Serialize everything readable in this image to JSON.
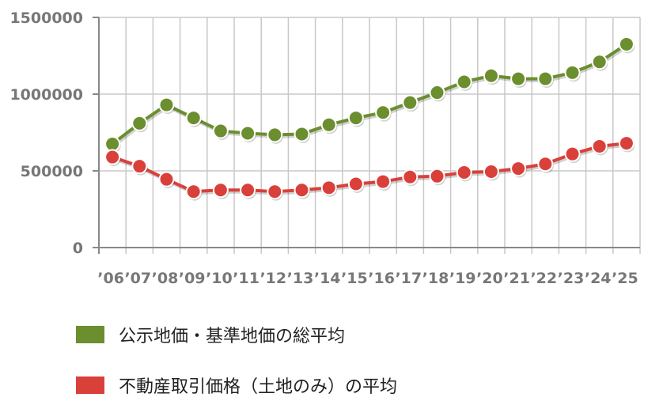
{
  "chart_data": {
    "type": "line",
    "title": "",
    "xlabel": "",
    "ylabel": "",
    "ylim": [
      0,
      1500000
    ],
    "yticks": [
      "1500000",
      "1000000",
      "500000",
      "0"
    ],
    "categories": [
      "'06",
      "'07",
      "'08",
      "'09",
      "'10",
      "'11",
      "'12",
      "'13",
      "'14",
      "'15",
      "'16",
      "'17",
      "'18",
      "'19",
      "'20",
      "'21",
      "'22",
      "'23",
      "'24",
      "'25"
    ],
    "x_tick_labels": [
      "’06",
      "’07",
      "’08",
      "’09",
      "’10",
      "’11",
      "’12",
      "’13",
      "’14",
      "’15",
      "’16",
      "’17",
      "’18",
      "’19",
      "’20",
      "’21",
      "’22",
      "’23",
      "’24",
      "’25"
    ],
    "grid": true,
    "legend_position": "bottom",
    "series": [
      {
        "name": "公示地価・基準地価の総平均",
        "color": "#6b8e2e",
        "values": [
          675000,
          810000,
          930000,
          845000,
          760000,
          745000,
          735000,
          740000,
          800000,
          845000,
          880000,
          945000,
          1010000,
          1080000,
          1120000,
          1100000,
          1100000,
          1140000,
          1210000,
          1325000
        ]
      },
      {
        "name": "不動産取引価格（土地のみ）の平均",
        "color": "#d9403a",
        "values": [
          590000,
          530000,
          445000,
          365000,
          375000,
          375000,
          365000,
          375000,
          390000,
          415000,
          430000,
          460000,
          465000,
          490000,
          495000,
          515000,
          545000,
          610000,
          660000,
          680000
        ]
      }
    ]
  },
  "legend": {
    "items": [
      {
        "label": "公示地価・基準地価の総平均",
        "color": "#6b8e2e"
      },
      {
        "label": "不動産取引価格（土地のみ）の平均",
        "color": "#d9403a"
      }
    ]
  }
}
